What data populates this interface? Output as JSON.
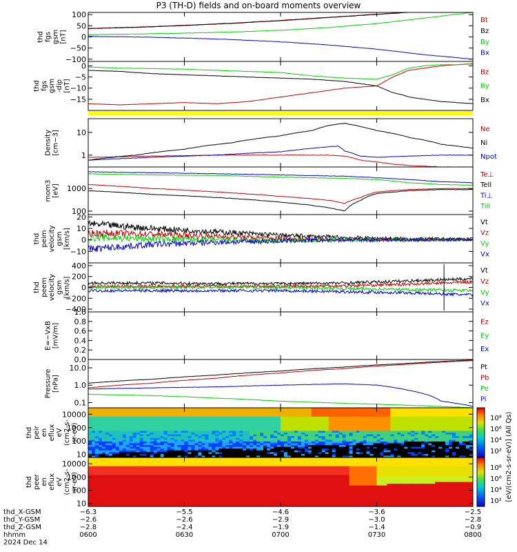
{
  "title": "P3 (TH-D) fields and on-board moments overview",
  "colors": {
    "black": "#000000",
    "red": "#c00000",
    "green": "#00d000",
    "blue": "#0000d0",
    "yellow": "#ffff00"
  },
  "chart_data": [
    {
      "type": "line",
      "ylabel": [
        "thd",
        "fgs",
        "gsm",
        "[nT]"
      ],
      "ylim": [
        -110,
        110
      ],
      "yticks": [
        100,
        50,
        0,
        -50,
        -100
      ],
      "yticklabels": [
        "100",
        "50",
        "0",
        "−50",
        "−100"
      ],
      "series": [
        {
          "name": "Bt",
          "color": "red",
          "x": [
            0,
            15,
            30,
            45,
            60,
            75,
            90,
            105,
            120
          ],
          "values": [
            38,
            44,
            52,
            62,
            74,
            88,
            102,
            116,
            128
          ]
        },
        {
          "name": "Bz",
          "color": "black",
          "x": [
            0,
            15,
            30,
            45,
            60,
            75,
            90,
            105,
            120
          ],
          "values": [
            37,
            43,
            51,
            61,
            73,
            87,
            101,
            115,
            127
          ]
        },
        {
          "name": "By",
          "color": "green",
          "x": [
            0,
            15,
            30,
            45,
            60,
            75,
            90,
            105,
            120
          ],
          "values": [
            10,
            13,
            17,
            22,
            30,
            42,
            60,
            85,
            110
          ]
        },
        {
          "name": "Bx",
          "color": "blue",
          "x": [
            0,
            15,
            30,
            45,
            60,
            75,
            90,
            105,
            120
          ],
          "values": [
            2,
            0,
            -5,
            -12,
            -22,
            -36,
            -55,
            -80,
            -100
          ]
        }
      ],
      "legend": [
        "Bt",
        "Bz",
        "By",
        "Bx"
      ]
    },
    {
      "type": "line",
      "ylabel": [
        "thd",
        "fgs",
        "gsm",
        "-dip",
        "[nT]"
      ],
      "ylim": [
        -20,
        2
      ],
      "yticks": [
        0,
        -5,
        -10,
        -15
      ],
      "yticklabels": [
        "0",
        "−5",
        "−10",
        "−15"
      ],
      "series": [
        {
          "name": "Bz",
          "color": "red",
          "x": [
            0,
            10,
            20,
            30,
            40,
            50,
            55,
            60,
            70,
            80,
            90,
            95,
            100,
            105,
            110,
            115,
            120
          ],
          "values": [
            -17,
            -17.5,
            -17,
            -16.5,
            -17,
            -16,
            -15,
            -14,
            -12,
            -10,
            -9,
            -5,
            -2,
            -1,
            0,
            0.5,
            1
          ]
        },
        {
          "name": "By",
          "color": "green",
          "x": [
            0,
            10,
            20,
            30,
            40,
            50,
            60,
            70,
            80,
            90,
            95,
            100,
            105,
            110,
            115,
            120
          ],
          "values": [
            -0.5,
            -1,
            -1.2,
            -1.5,
            -2,
            -2.5,
            -3,
            -4.5,
            -5.5,
            -6,
            -4,
            -1,
            0,
            0.5,
            0.5,
            0.8
          ]
        },
        {
          "name": "Bx",
          "color": "black",
          "x": [
            0,
            10,
            20,
            30,
            40,
            50,
            60,
            70,
            80,
            90,
            95,
            98,
            100,
            105,
            110,
            115,
            120
          ],
          "values": [
            -2,
            -2.5,
            -3.5,
            -4,
            -4.5,
            -5,
            -5.5,
            -6,
            -7,
            -9,
            -12,
            -13,
            -14,
            -15,
            -16,
            -16.5,
            -17
          ]
        }
      ],
      "legend": [
        "Bz",
        "By",
        "Bx"
      ]
    },
    {
      "type": "line",
      "ylabel": [
        "Density",
        "[cm−3]"
      ],
      "ylim": [
        0.3,
        40
      ],
      "log": true,
      "yticks": [
        10,
        1
      ],
      "yticklabels": [
        "10",
        "1"
      ],
      "series": [
        {
          "name": "Ne",
          "color": "red",
          "x": [
            0,
            20,
            40,
            60,
            75,
            80,
            85,
            90,
            95,
            100,
            110,
            120
          ],
          "values": [
            0.8,
            0.9,
            1.0,
            1.0,
            1.0,
            0.9,
            0.6,
            0.5,
            0.4,
            0.35,
            0.3,
            0.3
          ]
        },
        {
          "name": "Ni",
          "color": "black",
          "x": [
            0,
            15,
            30,
            45,
            60,
            70,
            75,
            80,
            85,
            90,
            100,
            110,
            120
          ],
          "values": [
            0.6,
            1.0,
            1.8,
            3.5,
            7,
            12,
            20,
            25,
            18,
            12,
            6,
            3,
            2
          ]
        },
        {
          "name": "Npot",
          "color": "blue",
          "x": [
            0,
            20,
            40,
            60,
            70,
            78,
            80,
            85,
            90,
            100,
            110,
            120
          ],
          "values": [
            0.6,
            0.8,
            1.0,
            1.4,
            2.0,
            2.5,
            1.5,
            0.9,
            0.8,
            0.9,
            1.0,
            1.0
          ]
        }
      ],
      "legend": [
        "Ne",
        "Ni",
        "Npot"
      ]
    },
    {
      "type": "line",
      "ylabel": [
        "mom3",
        "[eV]"
      ],
      "ylim": [
        70,
        9000
      ],
      "log": true,
      "yticks": [
        1000,
        100
      ],
      "yticklabels": [
        "1000",
        "100"
      ],
      "series": [
        {
          "name": "Te⊥",
          "color": "red",
          "x": [
            0,
            20,
            40,
            60,
            75,
            80,
            85,
            90,
            100,
            110,
            120
          ],
          "values": [
            1500,
            1000,
            700,
            450,
            300,
            220,
            400,
            700,
            900,
            1000,
            1000
          ]
        },
        {
          "name": "Tell",
          "color": "black",
          "x": [
            0,
            20,
            40,
            60,
            75,
            80,
            85,
            90,
            100,
            110,
            120
          ],
          "values": [
            800,
            550,
            400,
            250,
            140,
            100,
            300,
            600,
            800,
            900,
            900
          ]
        },
        {
          "name": "Ti⊥",
          "color": "blue",
          "x": [
            0,
            20,
            40,
            60,
            80,
            90,
            100,
            110,
            120
          ],
          "values": [
            5500,
            5000,
            4500,
            4000,
            3500,
            3000,
            2500,
            2000,
            1800
          ]
        },
        {
          "name": "Till",
          "color": "green",
          "x": [
            0,
            20,
            40,
            60,
            80,
            90,
            100,
            110,
            120
          ],
          "values": [
            4500,
            4000,
            3800,
            3200,
            2800,
            2500,
            1800,
            1500,
            1400
          ]
        }
      ],
      "legend": [
        "Te⊥",
        "Tell",
        "Ti⊥",
        "Till"
      ]
    },
    {
      "type": "line",
      "ylabel": [
        "thd",
        "peim",
        "velocity",
        "gsm",
        "[km/s]"
      ],
      "ylim": [
        -20,
        22
      ],
      "yticks": [
        20,
        10,
        0,
        -10
      ],
      "yticklabels": [
        "20",
        "10",
        "0",
        "−10"
      ],
      "noisy": true,
      "series": [
        {
          "name": "Vt",
          "color": "black",
          "x": [
            0,
            20,
            40,
            60,
            80,
            100,
            120
          ],
          "values": [
            14,
            10,
            7,
            4,
            2,
            1,
            1
          ]
        },
        {
          "name": "Vz",
          "color": "red",
          "x": [
            0,
            20,
            40,
            60,
            80,
            100,
            120
          ],
          "values": [
            6,
            5,
            3,
            1,
            0,
            0,
            0
          ]
        },
        {
          "name": "Vy",
          "color": "green",
          "x": [
            0,
            20,
            40,
            60,
            80,
            100,
            120
          ],
          "values": [
            2,
            1,
            0,
            -1,
            0,
            0,
            0
          ]
        },
        {
          "name": "Vx",
          "color": "blue",
          "x": [
            0,
            20,
            40,
            60,
            80,
            100,
            120
          ],
          "values": [
            -8,
            -4,
            -2,
            -1,
            0,
            0,
            0
          ]
        }
      ],
      "legend": [
        "Vt",
        "Vz",
        "Vy",
        "Vx"
      ]
    },
    {
      "type": "line",
      "ylabel": [
        "thd",
        "peem",
        "velocity",
        "gsm",
        "[km/s]"
      ],
      "ylim": [
        -450,
        450
      ],
      "yticks": [
        400,
        200,
        0,
        -200,
        -400
      ],
      "yticklabels": [
        "400",
        "200",
        "0",
        "−200",
        "−400"
      ],
      "noisy": true,
      "series": [
        {
          "name": "Vt",
          "color": "black",
          "x": [
            0,
            20,
            40,
            60,
            80,
            100,
            120
          ],
          "values": [
            80,
            80,
            70,
            70,
            80,
            120,
            160
          ]
        },
        {
          "name": "Vz",
          "color": "red",
          "x": [
            0,
            20,
            40,
            60,
            80,
            100,
            120
          ],
          "values": [
            20,
            20,
            20,
            20,
            30,
            60,
            100
          ]
        },
        {
          "name": "Vy",
          "color": "green",
          "x": [
            0,
            20,
            40,
            60,
            80,
            100,
            120
          ],
          "values": [
            0,
            0,
            0,
            0,
            -20,
            -40,
            -60
          ]
        },
        {
          "name": "Vx",
          "color": "blue",
          "x": [
            0,
            20,
            40,
            60,
            80,
            100,
            120
          ],
          "values": [
            -60,
            -60,
            -60,
            -60,
            -80,
            -100,
            -140
          ]
        }
      ],
      "legend": [
        "Vt",
        "Vz",
        "Vy",
        "Vx"
      ]
    },
    {
      "type": "line",
      "ylabel": [
        "E=−VxB",
        "[mV/m]"
      ],
      "ylim": [
        0,
        1.0
      ],
      "yticks": [
        1.0,
        0.8,
        0.6,
        0.4,
        0.2,
        0.0
      ],
      "yticklabels": [
        "1.0",
        "0.8",
        "0.6",
        "0.4",
        "0.2",
        "0.0"
      ],
      "series": [],
      "legend": [
        "Ez",
        "Ey",
        "Ex"
      ],
      "legendColors": [
        "red",
        "green",
        "blue"
      ]
    },
    {
      "type": "line",
      "ylabel": [
        "Pressure",
        "[nPa]"
      ],
      "ylim": [
        0.05,
        30
      ],
      "log": true,
      "yticks": [
        10,
        1,
        0.1
      ],
      "yticklabels": [
        "10.0",
        "1.0",
        "0.1"
      ],
      "series": [
        {
          "name": "Pt",
          "color": "black",
          "x": [
            0,
            20,
            40,
            60,
            80,
            100,
            120
          ],
          "values": [
            1.3,
            2.2,
            3.8,
            6.5,
            11,
            18,
            28
          ]
        },
        {
          "name": "Pb",
          "color": "red",
          "x": [
            0,
            20,
            40,
            60,
            80,
            100,
            120
          ],
          "values": [
            0.7,
            1.3,
            2.5,
            5,
            9,
            16,
            26
          ]
        },
        {
          "name": "Pe",
          "color": "green",
          "x": [
            0,
            20,
            40,
            60,
            80,
            100,
            110,
            120
          ],
          "values": [
            0.3,
            0.25,
            0.18,
            0.12,
            0.09,
            0.07,
            0.06,
            0.05
          ]
        },
        {
          "name": "Pi",
          "color": "blue",
          "x": [
            0,
            20,
            40,
            60,
            80,
            90,
            100,
            110,
            120
          ],
          "values": [
            0.6,
            0.7,
            0.8,
            1.0,
            1.2,
            1.0,
            0.5,
            0.12,
            0.06
          ]
        }
      ],
      "legend": [
        "Pt",
        "Pb",
        "Pe",
        "Pi"
      ]
    },
    {
      "type": "heatmap",
      "ylabel": [
        "thd",
        "peir",
        "en",
        "eflux",
        "eV",
        "(cm2-s-",
        "sr-eV)"
      ],
      "ylim": [
        6,
        30000
      ],
      "log": true,
      "yticks": [
        10000,
        1000,
        100,
        10
      ],
      "yticklabels": [
        "10000",
        "1000",
        "100",
        "10"
      ],
      "species": "ion"
    },
    {
      "type": "heatmap",
      "ylabel": [
        "thd",
        "peer",
        "en",
        "eflux",
        "eV",
        "(cm2-s-",
        "sr-eV)"
      ],
      "ylim": [
        6,
        30000
      ],
      "log": true,
      "yticks": [
        10000,
        1000,
        100,
        10
      ],
      "yticklabels": [
        "10000",
        "1000",
        "100",
        "10"
      ],
      "species": "electron"
    }
  ],
  "colorbar": {
    "ticks": [
      "10⁸",
      "10⁶",
      "10⁴",
      "10²",
      "10⁸",
      "10⁶",
      "10⁴",
      "10²"
    ],
    "label": "[eV/(cm2-s-sr-eV)] (All Qs)"
  },
  "xaxis": {
    "x": [
      0,
      30,
      60,
      90,
      120
    ],
    "rows": [
      {
        "label": "thd_X-GSM",
        "values": [
          "−6.3",
          "−5.5",
          "−4.6",
          "−3.6",
          "−2.5"
        ]
      },
      {
        "label": "thd_Y-GSM",
        "values": [
          "−2.6",
          "−2.6",
          "−2.9",
          "−3.0",
          "−2.8"
        ]
      },
      {
        "label": "thd_Z-GSM",
        "values": [
          "−2.8",
          "−2.4",
          "−1.9",
          "−1.4",
          "−0.9"
        ]
      },
      {
        "label": "hhmm",
        "values": [
          "0600",
          "0630",
          "0700",
          "0730",
          "0800"
        ]
      }
    ],
    "date": "2024 Dec 14"
  }
}
